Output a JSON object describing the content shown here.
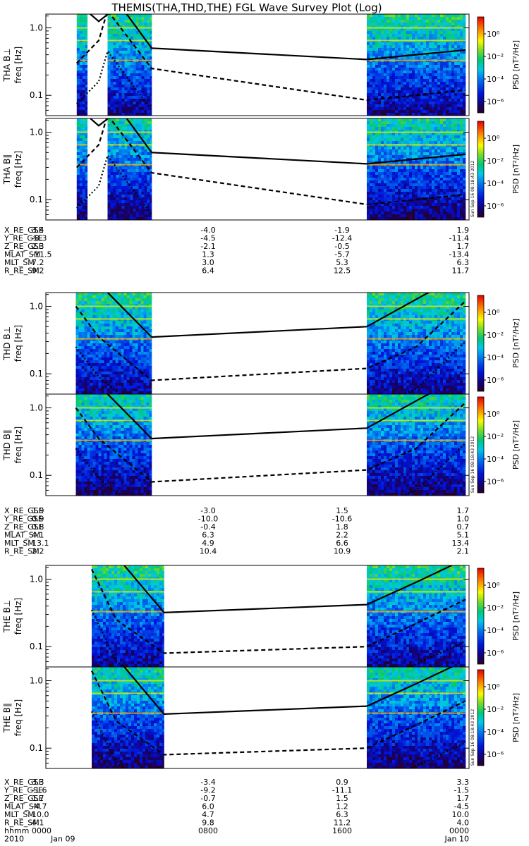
{
  "title": "THEMIS(THA,THD,THE) FGL Wave Survey Plot (Log)",
  "chart_data": {
    "type": "heatmap",
    "colorbar": {
      "label": "PSD [nT²/Hz]",
      "tick_labels": [
        "10⁰",
        "10⁻²",
        "10⁻⁴",
        "10⁻⁶"
      ],
      "tick_values": [
        0,
        -2,
        -4,
        -6
      ],
      "range_log10": [
        -7,
        1.5
      ],
      "stamp": "Sun Sep 16 08:18:43 2012"
    },
    "y_axis": {
      "label": "freq [Hz]",
      "scale": "log",
      "range": [
        0.05,
        1.6
      ],
      "ticks": [
        1.0,
        0.1
      ],
      "tick_labels": [
        "1.0",
        "0.1"
      ]
    },
    "x_axis": {
      "range_hours": [
        0,
        24
      ]
    },
    "panels": [
      {
        "label": "THA B⊥",
        "probe": "THA",
        "data_intervals_h": [
          [
            1.75,
            2.35
          ],
          [
            3.5,
            6.0
          ],
          [
            18.2,
            23.8
          ]
        ],
        "gyro_solid": [
          [
            2.2,
            1.9
          ],
          [
            3.0,
            1.25
          ],
          [
            4.2,
            2.2
          ],
          [
            6.0,
            0.5
          ],
          [
            18.2,
            0.34
          ],
          [
            21,
            0.4
          ],
          [
            23.8,
            0.47
          ]
        ],
        "gyro_dashed": [
          [
            1.75,
            0.3
          ],
          [
            3.0,
            0.65
          ],
          [
            3.5,
            1.8
          ],
          [
            6.0,
            0.25
          ],
          [
            18.2,
            0.085
          ],
          [
            21,
            0.1
          ],
          [
            23.8,
            0.12
          ]
        ],
        "gyro_dotted": [
          [
            1.75,
            0.075
          ],
          [
            3.0,
            0.16
          ],
          [
            3.5,
            0.45
          ],
          [
            6.0,
            0.06
          ]
        ]
      },
      {
        "label": "THA B∥",
        "probe": "THA",
        "data_intervals_h": [
          [
            1.75,
            2.35
          ],
          [
            3.5,
            6.0
          ],
          [
            18.2,
            23.8
          ]
        ],
        "gyro_solid": [
          [
            2.2,
            1.9
          ],
          [
            3.0,
            1.25
          ],
          [
            4.2,
            2.2
          ],
          [
            6.0,
            0.5
          ],
          [
            18.2,
            0.34
          ],
          [
            21,
            0.4
          ],
          [
            23.8,
            0.47
          ]
        ],
        "gyro_dashed": [
          [
            1.75,
            0.3
          ],
          [
            3.0,
            0.65
          ],
          [
            3.5,
            1.8
          ],
          [
            6.0,
            0.25
          ],
          [
            18.2,
            0.085
          ],
          [
            21,
            0.1
          ],
          [
            23.8,
            0.12
          ]
        ],
        "gyro_dotted": [
          [
            1.75,
            0.075
          ],
          [
            3.0,
            0.16
          ],
          [
            3.5,
            0.45
          ],
          [
            6.0,
            0.06
          ]
        ]
      },
      {
        "label": "THD B⊥",
        "probe": "THD",
        "data_intervals_h": [
          [
            1.7,
            6.0
          ],
          [
            18.2,
            23.8
          ]
        ],
        "gyro_solid": [
          [
            2.0,
            4.0
          ],
          [
            6.0,
            0.35
          ],
          [
            18.2,
            0.5
          ],
          [
            21.5,
            1.5
          ],
          [
            23.8,
            3.0
          ]
        ],
        "gyro_dashed": [
          [
            1.7,
            1.0
          ],
          [
            3.0,
            0.35
          ],
          [
            6.0,
            0.08
          ],
          [
            18.2,
            0.12
          ],
          [
            21,
            0.25
          ],
          [
            23.8,
            1.2
          ]
        ],
        "gyro_dotted": [
          [
            1.7,
            0.25
          ],
          [
            3.0,
            0.09
          ],
          [
            6.0,
            0.02
          ],
          [
            18.2,
            0.03
          ],
          [
            21,
            0.06
          ],
          [
            23.8,
            0.3
          ]
        ]
      },
      {
        "label": "THD B∥",
        "probe": "THD",
        "data_intervals_h": [
          [
            1.7,
            6.0
          ],
          [
            18.2,
            23.8
          ]
        ],
        "gyro_solid": [
          [
            2.0,
            4.0
          ],
          [
            6.0,
            0.35
          ],
          [
            18.2,
            0.5
          ],
          [
            21.5,
            1.5
          ],
          [
            23.8,
            3.0
          ]
        ],
        "gyro_dashed": [
          [
            1.7,
            1.0
          ],
          [
            3.0,
            0.35
          ],
          [
            6.0,
            0.08
          ],
          [
            18.2,
            0.12
          ],
          [
            21,
            0.25
          ],
          [
            23.8,
            1.2
          ]
        ],
        "gyro_dotted": [
          [
            1.7,
            0.25
          ],
          [
            3.0,
            0.09
          ],
          [
            6.0,
            0.02
          ],
          [
            18.2,
            0.03
          ],
          [
            21,
            0.06
          ],
          [
            23.8,
            0.3
          ]
        ]
      },
      {
        "label": "THE B⊥",
        "probe": "THE",
        "data_intervals_h": [
          [
            2.6,
            6.7
          ],
          [
            18.2,
            23.8
          ]
        ],
        "gyro_solid": [
          [
            2.6,
            6.0
          ],
          [
            6.7,
            0.32
          ],
          [
            18.2,
            0.42
          ],
          [
            21,
            0.9
          ],
          [
            23.8,
            2.0
          ]
        ],
        "gyro_dashed": [
          [
            2.6,
            1.4
          ],
          [
            4.0,
            0.25
          ],
          [
            6.7,
            0.08
          ],
          [
            18.2,
            0.1
          ],
          [
            21,
            0.22
          ],
          [
            23.8,
            0.5
          ]
        ],
        "gyro_dotted": [
          [
            2.6,
            0.35
          ],
          [
            4.0,
            0.06
          ],
          [
            6.7,
            0.02
          ],
          [
            18.2,
            0.025
          ],
          [
            21,
            0.055
          ],
          [
            23.8,
            0.12
          ]
        ]
      },
      {
        "label": "THE B∥",
        "probe": "THE",
        "data_intervals_h": [
          [
            2.6,
            6.7
          ],
          [
            18.2,
            23.8
          ]
        ],
        "gyro_solid": [
          [
            2.6,
            6.0
          ],
          [
            6.7,
            0.32
          ],
          [
            18.2,
            0.42
          ],
          [
            21,
            0.9
          ],
          [
            23.8,
            2.0
          ]
        ],
        "gyro_dashed": [
          [
            2.6,
            1.4
          ],
          [
            4.0,
            0.25
          ],
          [
            6.7,
            0.08
          ],
          [
            18.2,
            0.1
          ],
          [
            21,
            0.22
          ],
          [
            23.8,
            0.5
          ]
        ],
        "gyro_dotted": [
          [
            2.6,
            0.35
          ],
          [
            4.0,
            0.06
          ],
          [
            6.7,
            0.02
          ],
          [
            18.2,
            0.025
          ],
          [
            21,
            0.055
          ],
          [
            23.8,
            0.12
          ]
        ]
      }
    ],
    "ephemeris": [
      {
        "probe": "THA",
        "rows": [
          {
            "label": "X_RE_GSE",
            "values": [
              "3.4",
              "-4.0",
              "-1.9",
              "1.9"
            ]
          },
          {
            "label": "Y_RE_GSE",
            "values": [
              "-8.3",
              "-4.5",
              "-12.4",
              "-11.4"
            ]
          },
          {
            "label": "Z_RE_GSE",
            "values": [
              "2.3",
              "-2.1",
              "-0.5",
              "1.7"
            ]
          },
          {
            "label": "MLAT_SM",
            "values": [
              "-11.5",
              "1.3",
              "-5.7",
              "-13.4"
            ]
          },
          {
            "label": "MLT_SM",
            "values": [
              "7.2",
              "3.0",
              "5.3",
              "6.3"
            ]
          },
          {
            "label": "R_RE_SM",
            "values": [
              "9.2",
              "6.4",
              "12.5",
              "11.7"
            ]
          }
        ]
      },
      {
        "probe": "THD",
        "rows": [
          {
            "label": "X_RE_GSE",
            "values": [
              "1.9",
              "-3.0",
              "1.5",
              "1.7"
            ]
          },
          {
            "label": "Y_RE_GSE",
            "values": [
              "0.9",
              "-10.0",
              "-10.6",
              "1.0"
            ]
          },
          {
            "label": "Z_RE_GSE",
            "values": [
              "0.8",
              "-0.4",
              "1.8",
              "0.7"
            ]
          },
          {
            "label": "MLAT_SM",
            "values": [
              "4.1",
              "6.3",
              "2.2",
              "5.1"
            ]
          },
          {
            "label": "MLT_SM",
            "values": [
              "13.1",
              "4.9",
              "6.6",
              "13.4"
            ]
          },
          {
            "label": "R_RE_SM",
            "values": [
              "2.2",
              "10.4",
              "10.9",
              "2.1"
            ]
          }
        ]
      },
      {
        "probe": "THE",
        "rows": [
          {
            "label": "X_RE_GSE",
            "values": [
              "3.3",
              "-3.4",
              "0.9",
              "3.3"
            ]
          },
          {
            "label": "Y_RE_GSE",
            "values": [
              "-1.6",
              "-9.2",
              "-11.1",
              "-1.5"
            ]
          },
          {
            "label": "Z_RE_GSE",
            "values": [
              "1.7",
              "-0.7",
              "1.5",
              "1.7"
            ]
          },
          {
            "label": "MLAT_SM",
            "values": [
              "-4.7",
              "6.0",
              "1.2",
              "-4.5"
            ]
          },
          {
            "label": "MLT_SM",
            "values": [
              "10.0",
              "4.7",
              "6.3",
              "10.0"
            ]
          },
          {
            "label": "R_RE_SM",
            "values": [
              "4.1",
              "9.8",
              "11.2",
              "4.0"
            ]
          }
        ]
      }
    ],
    "time_axis": {
      "rows": [
        {
          "label": "hhmm",
          "values": [
            "0000",
            "0800",
            "1600",
            "0000"
          ]
        },
        {
          "label": "2010",
          "values": [
            "Jan 09",
            "",
            "",
            "Jan 10"
          ]
        }
      ],
      "tick_hours": [
        0,
        8,
        16,
        24
      ]
    }
  }
}
